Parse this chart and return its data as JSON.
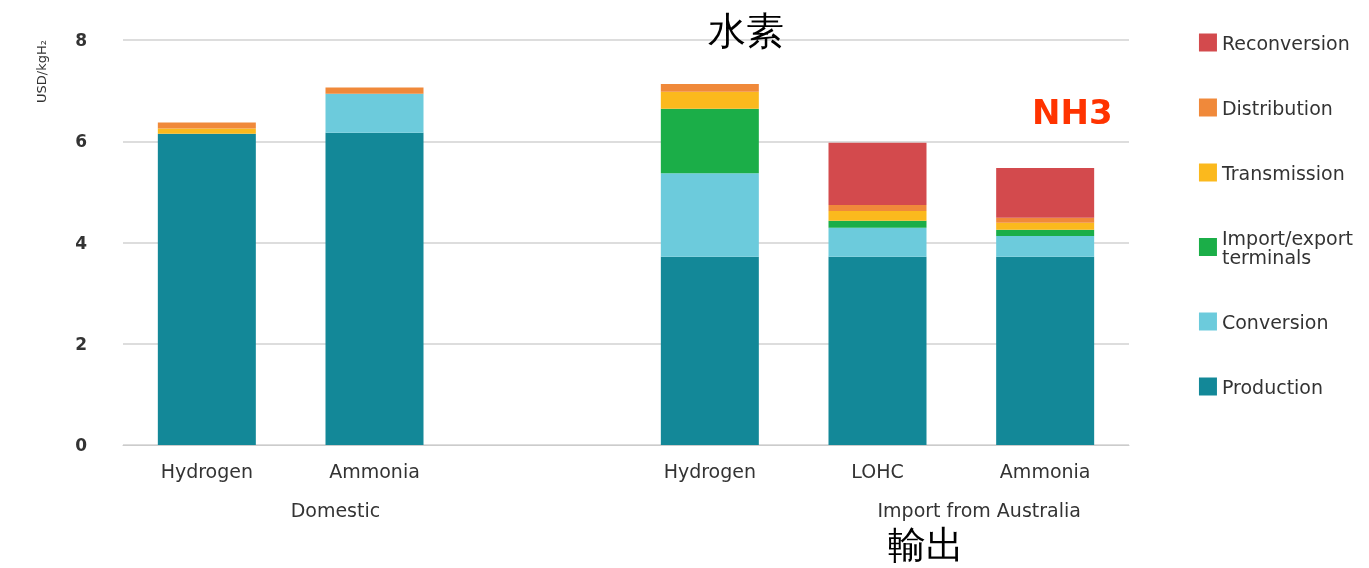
{
  "chart_data": {
    "type": "bar",
    "stacked": true,
    "ylabel": "USD/kgH₂",
    "categories": [
      "Hydrogen",
      "Ammonia",
      null,
      "Hydrogen",
      "LOHC",
      "Ammonia"
    ],
    "series": [
      {
        "name": "Production",
        "color": "#138898",
        "values": [
          6.15,
          6.17,
          null,
          3.72,
          3.72,
          3.72
        ]
      },
      {
        "name": "Conversion",
        "color": "#6ccbdc",
        "values": [
          null,
          0.77,
          null,
          1.65,
          0.57,
          0.41
        ]
      },
      {
        "name": "Import/export terminals",
        "color": "#1bae48",
        "values": [
          null,
          null,
          null,
          1.27,
          0.14,
          0.12
        ]
      },
      {
        "name": "Transmission",
        "color": "#fbb91d",
        "values": [
          0.1,
          null,
          null,
          0.34,
          0.19,
          0.14
        ]
      },
      {
        "name": "Distribution",
        "color": "#f0893a",
        "values": [
          0.12,
          0.12,
          null,
          0.15,
          0.12,
          0.1
        ]
      },
      {
        "name": "Reconversion",
        "color": "#d34a4d",
        "values": [
          null,
          null,
          null,
          null,
          1.23,
          0.98
        ]
      }
    ],
    "ylim": [
      0,
      8
    ],
    "yticks": [
      0,
      2,
      4,
      6,
      8
    ],
    "grid": "y",
    "legend": "right",
    "annotations": [
      "Domestic",
      "Import from Australia",
      "水素",
      "NH3",
      "輸出"
    ]
  }
}
